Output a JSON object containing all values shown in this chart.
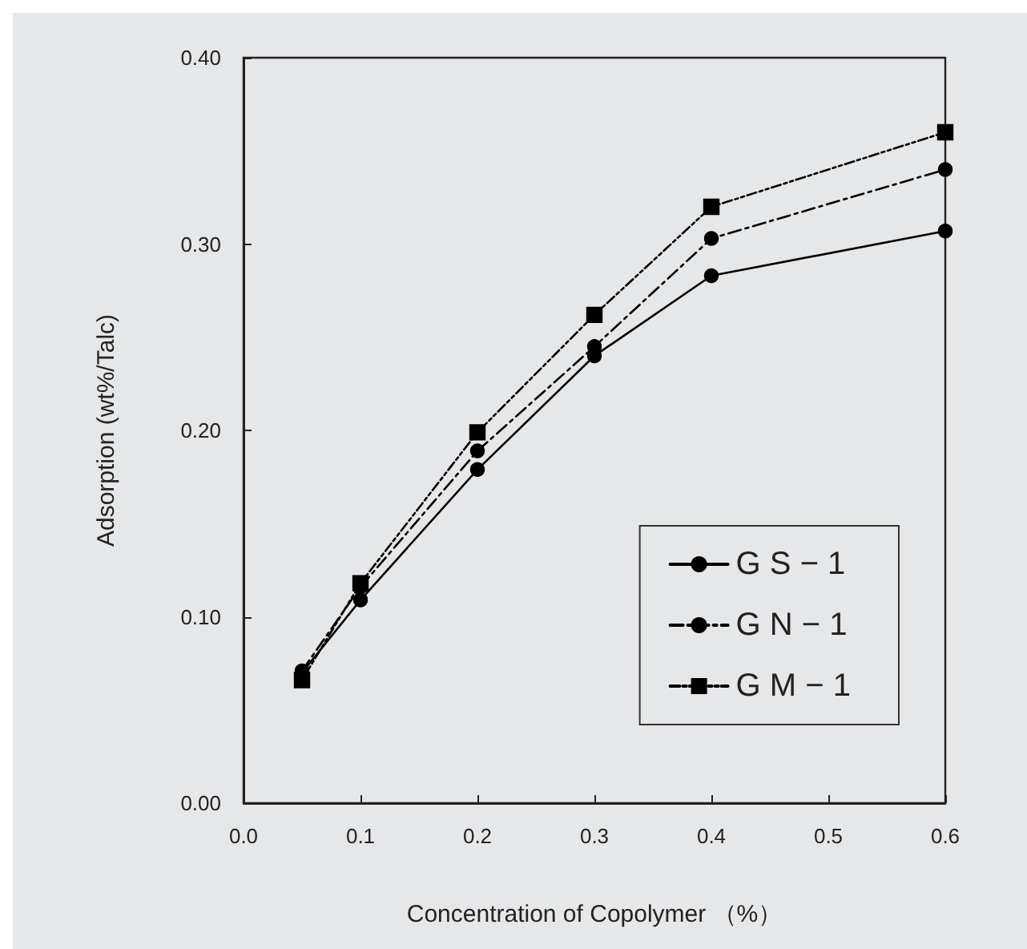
{
  "chart_data": {
    "type": "line",
    "xlabel": "Concentration of Copolymer （%）",
    "ylabel": "Adsorption (wt%/Talc)",
    "x": [
      0.05,
      0.1,
      0.2,
      0.3,
      0.4,
      0.6
    ],
    "series": [
      {
        "name": "G S − 1",
        "color": "#000000",
        "values": [
          0.07,
          0.109,
          0.179,
          0.24,
          0.283,
          0.307
        ],
        "marker": "circle",
        "line_style": "solid"
      },
      {
        "name": "G N − 1",
        "color": "#000000",
        "values": [
          0.071,
          0.116,
          0.189,
          0.245,
          0.303,
          0.34
        ],
        "marker": "circle",
        "line_style": "dashed"
      },
      {
        "name": "G M − 1",
        "color": "#000000",
        "values": [
          0.066,
          0.118,
          0.199,
          0.262,
          0.32,
          0.36
        ],
        "marker": "square",
        "line_style": "dotted"
      }
    ],
    "xlim": [
      0,
      0.6
    ],
    "xticks": [
      {
        "value": 0,
        "label": "0.0"
      },
      {
        "value": 0.1,
        "label": "0.1"
      },
      {
        "value": 0.2,
        "label": "0.2"
      },
      {
        "value": 0.3,
        "label": "0.3"
      },
      {
        "value": 0.4,
        "label": "0.4"
      },
      {
        "value": 0.5,
        "label": "0.5"
      },
      {
        "value": 0.6,
        "label": "0.6"
      }
    ],
    "ylim": [
      0,
      0.4
    ],
    "yticks": [
      {
        "value": 0,
        "label": "0.00"
      },
      {
        "value": 0.1,
        "label": "0.10"
      },
      {
        "value": 0.2,
        "label": "0.20"
      },
      {
        "value": 0.3,
        "label": "0.30"
      },
      {
        "value": 0.4,
        "label": "0.40"
      }
    ],
    "grid": false,
    "legend": "bottom right"
  }
}
